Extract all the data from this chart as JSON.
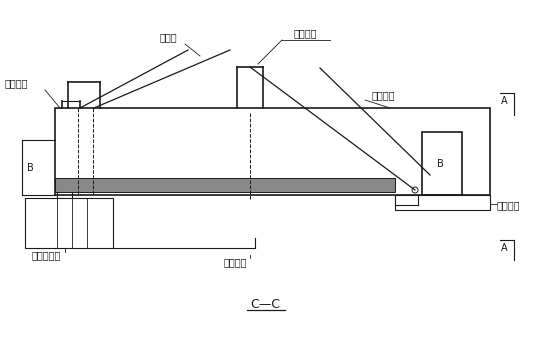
{
  "bg_color": "#ffffff",
  "line_color": "#1a1a1a",
  "gray_color": "#888888",
  "title": "C—C",
  "labels": {
    "yi_jiao": "已浇梁段",
    "xie_la": "斜拉索",
    "xing_zou": "行走沟挂",
    "dai_jiao": "待浇梁段",
    "gong_zuo": "工作平台",
    "hou_mao": "后锰座系统",
    "ye_ya": "液压装置"
  },
  "font_size": 7,
  "title_font_size": 9
}
